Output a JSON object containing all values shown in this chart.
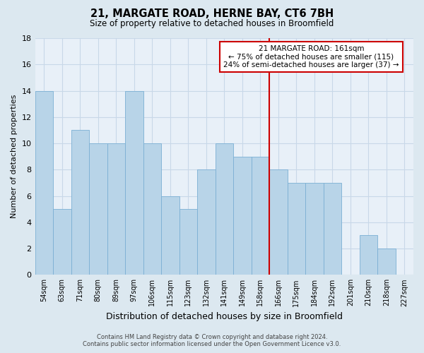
{
  "title": "21, MARGATE ROAD, HERNE BAY, CT6 7BH",
  "subtitle": "Size of property relative to detached houses in Broomfield",
  "xlabel": "Distribution of detached houses by size in Broomfield",
  "ylabel": "Number of detached properties",
  "footer_line1": "Contains HM Land Registry data © Crown copyright and database right 2024.",
  "footer_line2": "Contains public sector information licensed under the Open Government Licence v3.0.",
  "bar_labels": [
    "54sqm",
    "63sqm",
    "71sqm",
    "80sqm",
    "89sqm",
    "97sqm",
    "106sqm",
    "115sqm",
    "123sqm",
    "132sqm",
    "141sqm",
    "149sqm",
    "158sqm",
    "166sqm",
    "175sqm",
    "184sqm",
    "192sqm",
    "201sqm",
    "210sqm",
    "218sqm",
    "227sqm"
  ],
  "bar_values": [
    14,
    5,
    11,
    10,
    10,
    14,
    10,
    6,
    5,
    8,
    10,
    9,
    9,
    8,
    7,
    7,
    7,
    0,
    3,
    2,
    0
  ],
  "bar_color": "#b8d4e8",
  "bar_edge_color": "#7bafd4",
  "vline_x": 13,
  "vline_color": "#cc0000",
  "annotation_title": "21 MARGATE ROAD: 161sqm",
  "annotation_line1": "← 75% of detached houses are smaller (115)",
  "annotation_line2": "24% of semi-detached houses are larger (37) →",
  "annotation_box_facecolor": "#ffffff",
  "annotation_box_edgecolor": "#cc0000",
  "ylim": [
    0,
    18
  ],
  "yticks": [
    0,
    2,
    4,
    6,
    8,
    10,
    12,
    14,
    16,
    18
  ],
  "grid_color": "#c8d8e8",
  "background_color": "#dce8f0",
  "plot_bg_color": "#e8f0f8"
}
